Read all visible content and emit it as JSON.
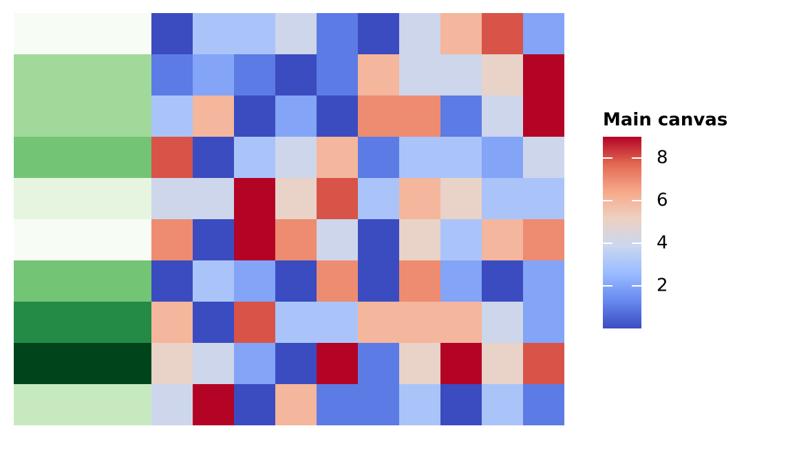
{
  "chart_data": {
    "type": "heatmap",
    "values": [
      [
        0,
        3,
        3,
        4,
        1,
        0,
        4,
        6,
        8,
        2
      ],
      [
        1,
        2,
        1,
        0,
        1,
        6,
        4,
        4,
        5,
        9
      ],
      [
        3,
        6,
        0,
        2,
        0,
        7,
        7,
        1,
        4,
        9
      ],
      [
        8,
        0,
        3,
        4,
        6,
        1,
        3,
        3,
        2,
        4
      ],
      [
        4,
        4,
        9,
        5,
        8,
        3,
        6,
        5,
        3,
        3
      ],
      [
        7,
        0,
        9,
        7,
        4,
        0,
        5,
        3,
        6,
        7
      ],
      [
        0,
        3,
        2,
        0,
        7,
        0,
        7,
        2,
        0,
        2
      ],
      [
        6,
        0,
        8,
        3,
        3,
        6,
        6,
        6,
        4,
        2
      ],
      [
        5,
        4,
        2,
        0,
        9,
        1,
        5,
        9,
        5,
        8
      ],
      [
        4,
        9,
        0,
        6,
        1,
        1,
        3,
        0,
        3,
        1
      ]
    ],
    "colormap": [
      "#3b4cc0",
      "#6788ee",
      "#9abbff",
      "#c9d7f0",
      "#edd1c2",
      "#f7a889",
      "#e26952",
      "#b40426"
    ],
    "clim": [
      0,
      9
    ],
    "colorbar": {
      "title": "Main canvas",
      "ticks": [
        2,
        4,
        6,
        8
      ]
    },
    "row_annotation": {
      "values": [
        0,
        3,
        3,
        4,
        1,
        0,
        4,
        6,
        8,
        2
      ],
      "colormap": [
        "#f7fcf5",
        "#e5f5e0",
        "#c7e9c0",
        "#a1d99b",
        "#74c476",
        "#41ab5d",
        "#238b45",
        "#006d2c",
        "#00441b"
      ],
      "clim": [
        0,
        8
      ]
    }
  }
}
